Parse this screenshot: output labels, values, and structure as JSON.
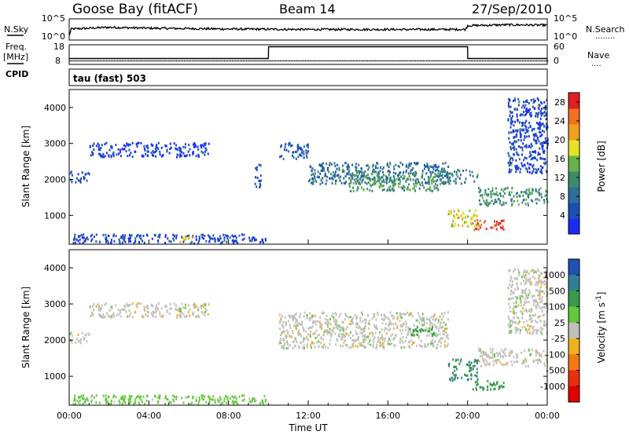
{
  "header": {
    "station": "Goose Bay (fitACF)",
    "beam": "Beam 14",
    "date": "27/Sep/2010"
  },
  "strip_labels": {
    "nsky": "N.Sky",
    "nsearch": "N.Search",
    "nsearch_dots": "........",
    "freq": "Freq.",
    "mhz": "[MHz]",
    "nave": "Nave",
    "nave_dots": "....",
    "cpid": "CPID",
    "cpid_value": "tau (fast) 503"
  },
  "noise_axis": {
    "left_ticks": [
      "10^5",
      "10^0"
    ],
    "right_ticks": [
      "10^5",
      "10^0"
    ]
  },
  "freq_axis": {
    "left_ticks": [
      "18",
      "8"
    ],
    "right_ticks": [
      "60",
      "0"
    ]
  },
  "colors": {
    "power_scale": [
      "#1a2cf0",
      "#1a50b4",
      "#2d6e9a",
      "#3a8c6a",
      "#67b24c",
      "#e8e02a",
      "#f0a020",
      "#f07020",
      "#e02020"
    ],
    "velocity_scale": [
      "#2050b0",
      "#2f7e96",
      "#3a9a4a",
      "#64c83c",
      "#c0c0bc",
      "#f0b020",
      "#f07a10",
      "#e83010",
      "#e00000"
    ]
  },
  "chart_data": [
    {
      "type": "line",
      "name": "noise-strip",
      "x_unit": "hours UT",
      "series": [
        {
          "name": "N.Sky",
          "x": [
            0,
            0.1,
            2,
            4,
            8,
            12,
            16,
            19.9,
            20,
            22,
            24
          ],
          "values": [
            1,
            2.6,
            3.0,
            2.8,
            2.6,
            2.5,
            2.5,
            2.5,
            3.4,
            3.6,
            3.5
          ]
        },
        {
          "name": "N.Search",
          "x": [
            0,
            0.1,
            2,
            4,
            8,
            12,
            16,
            19.9,
            20,
            22,
            24
          ],
          "values": [
            1,
            2.6,
            3.0,
            2.8,
            2.6,
            2.5,
            2.5,
            2.5,
            3.4,
            3.6,
            3.5
          ]
        }
      ]
    },
    {
      "type": "line",
      "name": "freq-nave-strip",
      "x_unit": "hours UT",
      "series": [
        {
          "name": "Freq.",
          "x": [
            0,
            10,
            10.01,
            20,
            20.01,
            24
          ],
          "values": [
            11,
            11,
            17,
            17,
            11,
            11
          ]
        },
        {
          "name": "Nave",
          "x": [
            0,
            24
          ],
          "values": [
            10,
            10
          ]
        }
      ]
    },
    {
      "type": "heatmap",
      "name": "power",
      "title": "Beam 14",
      "xlabel": "",
      "ylabel": "Slant Range [km]",
      "xlim": [
        0,
        24
      ],
      "ylim": [
        200,
        4500
      ],
      "x_ticks": [
        "00:00",
        "04:00",
        "08:00",
        "12:00",
        "16:00",
        "20:00",
        "00:00"
      ],
      "y_ticks": [
        1000,
        2000,
        3000,
        4000
      ],
      "colorbar": {
        "label": "Power [dB]",
        "ticks": [
          4,
          8,
          12,
          16,
          20,
          24,
          28
        ],
        "range": [
          0,
          30
        ]
      },
      "regions": [
        {
          "t": [
            0,
            1.0
          ],
          "range": [
            1950,
            2250
          ],
          "level": 4
        },
        {
          "t": [
            1.0,
            7.0
          ],
          "range": [
            2650,
            3050
          ],
          "level": 3
        },
        {
          "t": [
            0,
            10.0
          ],
          "range": [
            250,
            500
          ],
          "level": 4
        },
        {
          "t": [
            5.5,
            6.2
          ],
          "range": [
            280,
            450
          ],
          "level": 20
        },
        {
          "t": [
            9.3,
            9.6
          ],
          "range": [
            1800,
            2500
          ],
          "level": 3
        },
        {
          "t": [
            10.5,
            12.0
          ],
          "range": [
            2600,
            3050
          ],
          "level": 6
        },
        {
          "t": [
            12.0,
            19.0
          ],
          "range": [
            1900,
            2500
          ],
          "level": 8
        },
        {
          "t": [
            14.0,
            18.5
          ],
          "range": [
            1700,
            2200
          ],
          "level": 13
        },
        {
          "t": [
            18.5,
            20.5
          ],
          "range": [
            1900,
            2300
          ],
          "level": 10
        },
        {
          "t": [
            19.0,
            20.5
          ],
          "range": [
            700,
            1200
          ],
          "level": 18
        },
        {
          "t": [
            20.2,
            21.8
          ],
          "range": [
            620,
            900
          ],
          "level": 27
        },
        {
          "t": [
            20.5,
            24.0
          ],
          "range": [
            1300,
            1800
          ],
          "level": 12
        },
        {
          "t": [
            22.0,
            24.0
          ],
          "range": [
            2200,
            4300
          ],
          "level": 4
        }
      ]
    },
    {
      "type": "heatmap",
      "name": "velocity",
      "xlabel": "Time UT",
      "ylabel": "Slant Range [km]",
      "xlim": [
        0,
        24
      ],
      "ylim": [
        200,
        4500
      ],
      "x_ticks": [
        "00:00",
        "04:00",
        "08:00",
        "12:00",
        "16:00",
        "20:00",
        "00:00"
      ],
      "y_ticks": [
        1000,
        2000,
        3000,
        4000
      ],
      "colorbar": {
        "label": "Velocity [m s^-1]",
        "ticks": [
          "1000",
          "500",
          "100",
          "25",
          "-25",
          "-100",
          "-500",
          "-1000"
        ]
      },
      "regions": [
        {
          "t": [
            0,
            1.0
          ],
          "range": [
            1950,
            2250
          ],
          "value": 0
        },
        {
          "t": [
            1.0,
            7.0
          ],
          "range": [
            2650,
            3050
          ],
          "value": 0
        },
        {
          "t": [
            0,
            10.0
          ],
          "range": [
            250,
            500
          ],
          "value": 50
        },
        {
          "t": [
            10.5,
            19.0
          ],
          "range": [
            1800,
            2800
          ],
          "value": 0
        },
        {
          "t": [
            17.0,
            18.3
          ],
          "range": [
            2150,
            2400
          ],
          "value": 150
        },
        {
          "t": [
            19.0,
            20.5
          ],
          "range": [
            900,
            1500
          ],
          "value": 300
        },
        {
          "t": [
            20.2,
            21.8
          ],
          "range": [
            650,
            900
          ],
          "value": 200
        },
        {
          "t": [
            20.5,
            24.0
          ],
          "range": [
            1300,
            1800
          ],
          "value": 0
        },
        {
          "t": [
            22.0,
            24.0
          ],
          "range": [
            2200,
            4000
          ],
          "value": 0
        }
      ]
    }
  ]
}
